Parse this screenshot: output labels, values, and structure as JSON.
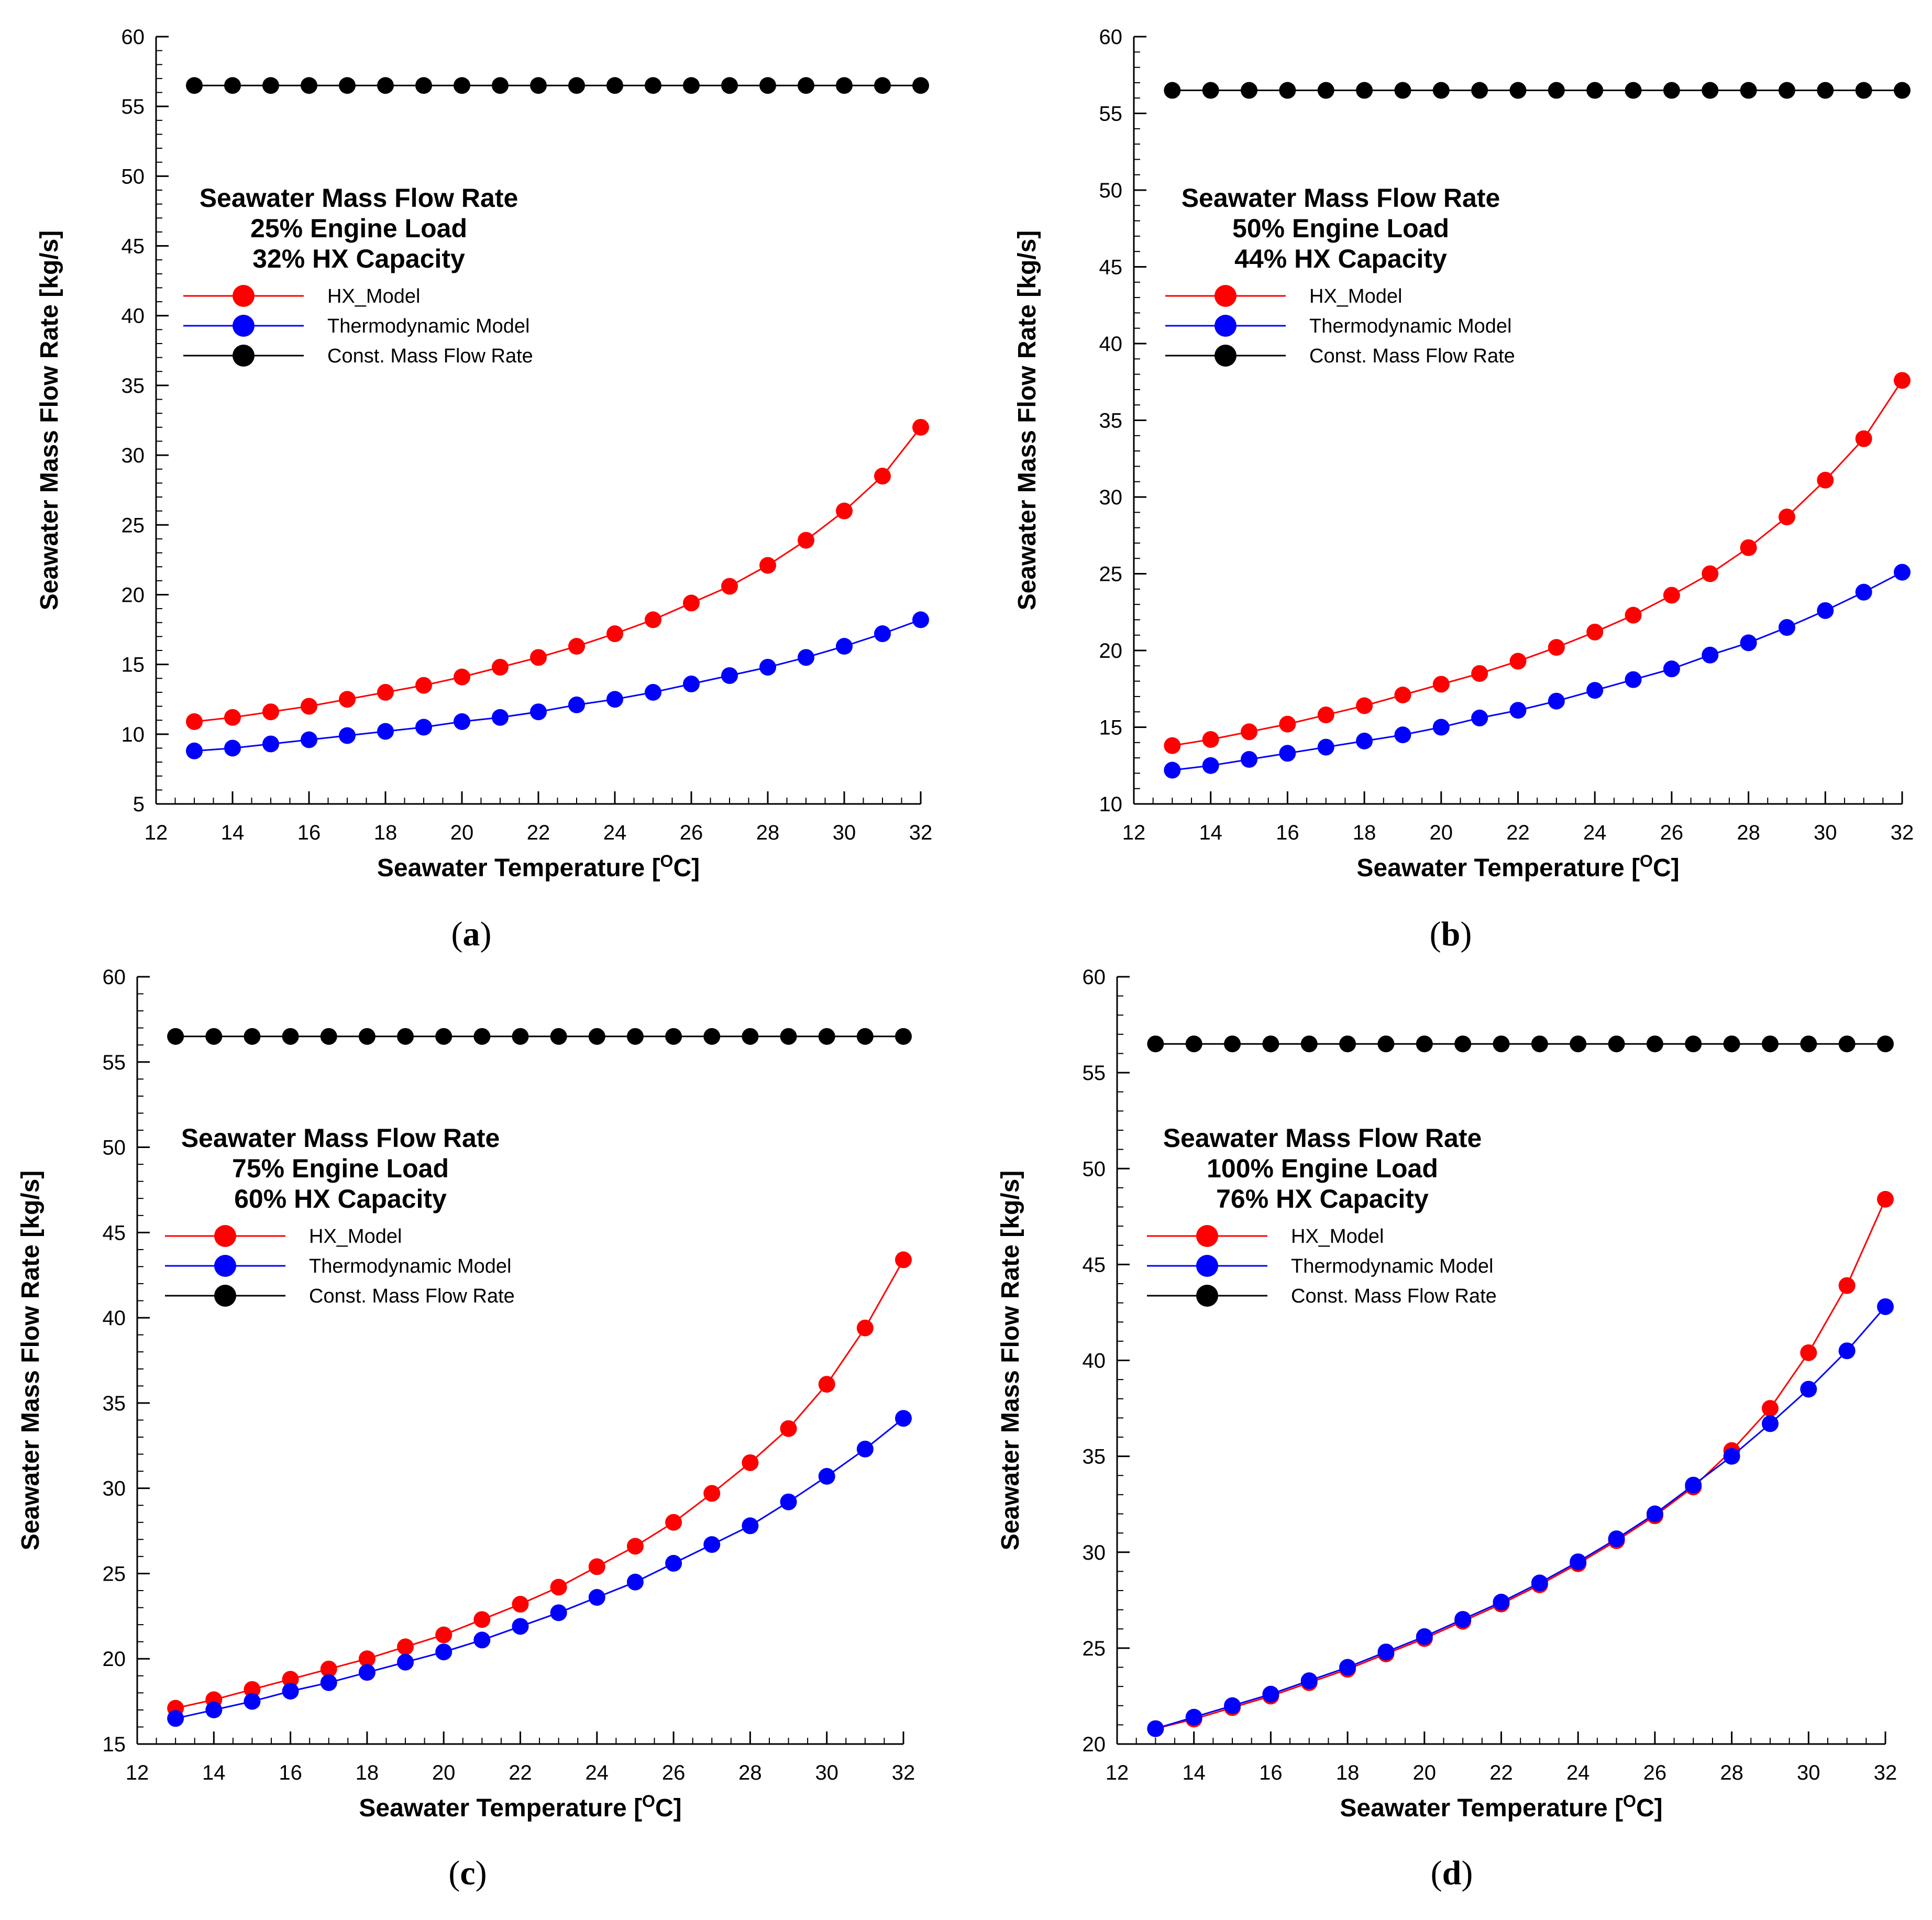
{
  "chart_data": [
    {
      "type": "line",
      "panel_label": "a",
      "annotation": [
        "Seawater Mass Flow Rate",
        "25% Engine Load",
        "32% HX Capacity"
      ],
      "xlabel": "Seawater Temperature [",
      "xlabel_sup": "O",
      "xlabel_end": "C]",
      "ylabel": "Seawater Mass Flow Rate [kg/s]",
      "xlim": [
        12,
        32
      ],
      "ylim": [
        5,
        60
      ],
      "xticks": [
        12,
        14,
        16,
        18,
        20,
        22,
        24,
        26,
        28,
        30,
        32
      ],
      "yticks": [
        5,
        10,
        15,
        20,
        25,
        30,
        35,
        40,
        45,
        50,
        55,
        60
      ],
      "x": [
        13,
        14,
        15,
        16,
        17,
        18,
        19,
        20,
        21,
        22,
        23,
        24,
        25,
        26,
        27,
        28,
        29,
        30,
        31,
        32
      ],
      "series": [
        {
          "name": "HX_Model",
          "color": "#ff0000",
          "values": [
            10.9,
            11.2,
            11.6,
            12.0,
            12.5,
            13.0,
            13.5,
            14.1,
            14.8,
            15.5,
            16.3,
            17.2,
            18.2,
            19.4,
            20.6,
            22.1,
            23.9,
            26.0,
            28.5,
            32.0
          ]
        },
        {
          "name": "Thermodynamic Model",
          "color": "#0000ff",
          "values": [
            8.8,
            9.0,
            9.3,
            9.6,
            9.9,
            10.2,
            10.5,
            10.9,
            11.2,
            11.6,
            12.1,
            12.5,
            13.0,
            13.6,
            14.2,
            14.8,
            15.5,
            16.3,
            17.2,
            18.2
          ]
        },
        {
          "name": "Const. Mass Flow Rate",
          "color": "#000000",
          "values": [
            56.5,
            56.5,
            56.5,
            56.5,
            56.5,
            56.5,
            56.5,
            56.5,
            56.5,
            56.5,
            56.5,
            56.5,
            56.5,
            56.5,
            56.5,
            56.5,
            56.5,
            56.5,
            56.5,
            56.5
          ]
        }
      ]
    },
    {
      "type": "line",
      "panel_label": "b",
      "annotation": [
        "Seawater Mass Flow Rate",
        "50% Engine Load",
        "44% HX Capacity"
      ],
      "xlabel": "Seawater Temperature [",
      "xlabel_sup": "O",
      "xlabel_end": "C]",
      "ylabel": "Seawater Mass Flow Rate [kg/s]",
      "xlim": [
        12,
        32
      ],
      "ylim": [
        10,
        60
      ],
      "xticks": [
        12,
        14,
        16,
        18,
        20,
        22,
        24,
        26,
        28,
        30,
        32
      ],
      "yticks": [
        10,
        15,
        20,
        25,
        30,
        35,
        40,
        45,
        50,
        55,
        60
      ],
      "x": [
        13,
        14,
        15,
        16,
        17,
        18,
        19,
        20,
        21,
        22,
        23,
        24,
        25,
        26,
        27,
        28,
        29,
        30,
        31,
        32
      ],
      "series": [
        {
          "name": "HX_Model",
          "color": "#ff0000",
          "values": [
            13.8,
            14.2,
            14.7,
            15.2,
            15.8,
            16.4,
            17.1,
            17.8,
            18.5,
            19.3,
            20.2,
            21.2,
            22.3,
            23.6,
            25.0,
            26.7,
            28.7,
            31.1,
            33.8,
            37.6
          ]
        },
        {
          "name": "Thermodynamic Model",
          "color": "#0000ff",
          "values": [
            12.2,
            12.5,
            12.9,
            13.3,
            13.7,
            14.1,
            14.5,
            15.0,
            15.6,
            16.1,
            16.7,
            17.4,
            18.1,
            18.8,
            19.7,
            20.5,
            21.5,
            22.6,
            23.8,
            25.1
          ]
        },
        {
          "name": "Const. Mass Flow Rate",
          "color": "#000000",
          "values": [
            56.5,
            56.5,
            56.5,
            56.5,
            56.5,
            56.5,
            56.5,
            56.5,
            56.5,
            56.5,
            56.5,
            56.5,
            56.5,
            56.5,
            56.5,
            56.5,
            56.5,
            56.5,
            56.5,
            56.5
          ]
        }
      ]
    },
    {
      "type": "line",
      "panel_label": "c",
      "annotation": [
        "Seawater Mass Flow Rate",
        "75% Engine Load",
        "60% HX Capacity"
      ],
      "xlabel": "Seawater Temperature [",
      "xlabel_sup": "O",
      "xlabel_end": "C]",
      "ylabel": "Seawater Mass Flow Rate [kg/s]",
      "xlim": [
        12,
        32
      ],
      "ylim": [
        15,
        60
      ],
      "xticks": [
        12,
        14,
        16,
        18,
        20,
        22,
        24,
        26,
        28,
        30,
        32
      ],
      "yticks": [
        15,
        20,
        25,
        30,
        35,
        40,
        45,
        50,
        55,
        60
      ],
      "x": [
        13,
        14,
        15,
        16,
        17,
        18,
        19,
        20,
        21,
        22,
        23,
        24,
        25,
        26,
        27,
        28,
        29,
        30,
        31,
        32
      ],
      "series": [
        {
          "name": "HX_Model",
          "color": "#ff0000",
          "values": [
            17.1,
            17.6,
            18.2,
            18.8,
            19.4,
            20.0,
            20.7,
            21.4,
            22.3,
            23.2,
            24.2,
            25.4,
            26.6,
            28.0,
            29.7,
            31.5,
            33.5,
            36.1,
            39.4,
            43.4
          ]
        },
        {
          "name": "Thermodynamic Model",
          "color": "#0000ff",
          "values": [
            16.5,
            17.0,
            17.5,
            18.1,
            18.6,
            19.2,
            19.8,
            20.4,
            21.1,
            21.9,
            22.7,
            23.6,
            24.5,
            25.6,
            26.7,
            27.8,
            29.2,
            30.7,
            32.3,
            34.1
          ]
        },
        {
          "name": "Const. Mass Flow Rate",
          "color": "#000000",
          "values": [
            56.5,
            56.5,
            56.5,
            56.5,
            56.5,
            56.5,
            56.5,
            56.5,
            56.5,
            56.5,
            56.5,
            56.5,
            56.5,
            56.5,
            56.5,
            56.5,
            56.5,
            56.5,
            56.5,
            56.5
          ]
        }
      ]
    },
    {
      "type": "line",
      "panel_label": "d",
      "annotation": [
        "Seawater Mass Flow Rate",
        "100% Engine Load",
        "76% HX Capacity"
      ],
      "xlabel": "Seawater Temperature [",
      "xlabel_sup": "O",
      "xlabel_end": "C]",
      "ylabel": "Seawater Mass Flow Rate [kg/s]",
      "xlim": [
        12,
        32
      ],
      "ylim": [
        20,
        60
      ],
      "xticks": [
        12,
        14,
        16,
        18,
        20,
        22,
        24,
        26,
        28,
        30,
        32
      ],
      "yticks": [
        20,
        25,
        30,
        35,
        40,
        45,
        50,
        55,
        60
      ],
      "x": [
        13,
        14,
        15,
        16,
        17,
        18,
        19,
        20,
        21,
        22,
        23,
        24,
        25,
        26,
        27,
        28,
        29,
        30,
        31,
        32
      ],
      "series": [
        {
          "name": "HX_Model",
          "color": "#ff0000",
          "values": [
            20.8,
            21.3,
            21.9,
            22.5,
            23.2,
            23.9,
            24.7,
            25.5,
            26.4,
            27.3,
            28.3,
            29.4,
            30.6,
            31.9,
            33.4,
            35.3,
            37.5,
            40.4,
            43.9,
            48.4
          ]
        },
        {
          "name": "Thermodynamic Model",
          "color": "#0000ff",
          "values": [
            20.8,
            21.4,
            22.0,
            22.6,
            23.3,
            24.0,
            24.8,
            25.6,
            26.5,
            27.4,
            28.4,
            29.5,
            30.7,
            32.0,
            33.5,
            35.0,
            36.7,
            38.5,
            40.5,
            42.8
          ]
        },
        {
          "name": "Const. Mass Flow Rate",
          "color": "#000000",
          "values": [
            56.5,
            56.5,
            56.5,
            56.5,
            56.5,
            56.5,
            56.5,
            56.5,
            56.5,
            56.5,
            56.5,
            56.5,
            56.5,
            56.5,
            56.5,
            56.5,
            56.5,
            56.5,
            56.5,
            56.5
          ]
        }
      ]
    }
  ]
}
